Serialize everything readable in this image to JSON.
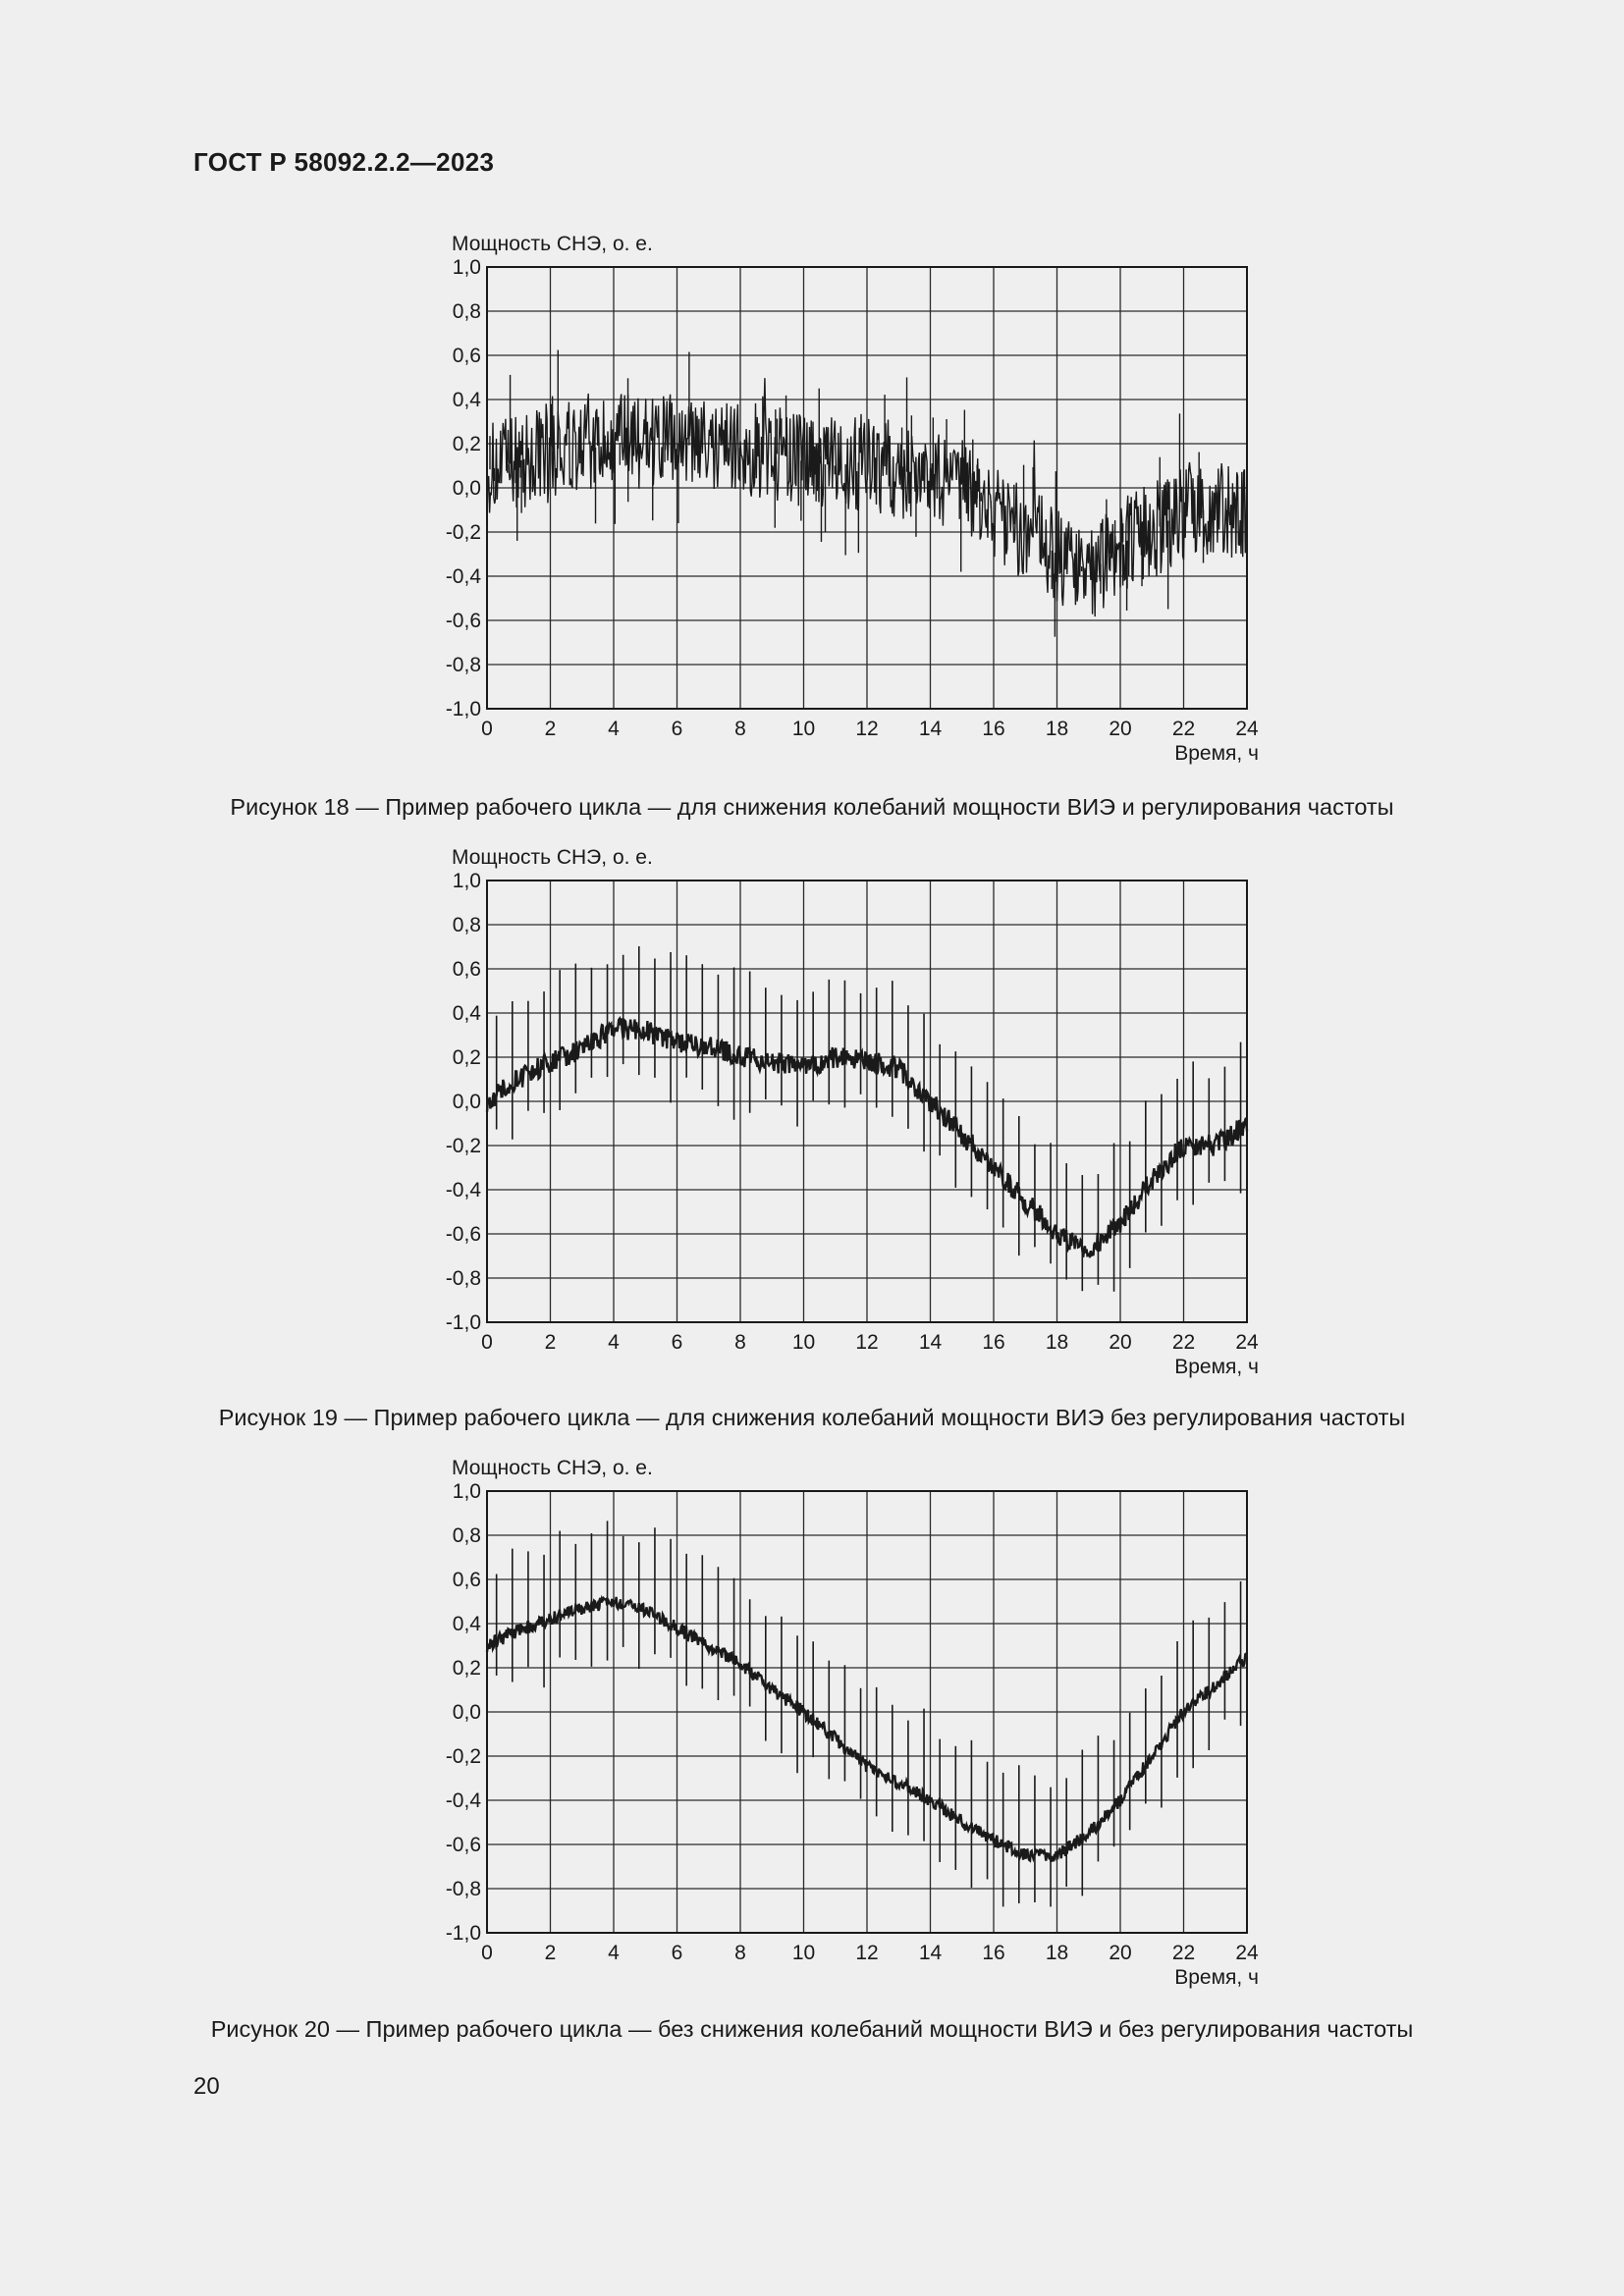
{
  "header": {
    "standard_id": "ГОСТ Р 58092.2.2—2023"
  },
  "page_number": "20",
  "figures": [
    {
      "caption": "Рисунок 18 — Пример рабочего цикла — для снижения колебаний мощности ВИЭ и регулирования частоты"
    },
    {
      "caption": "Рисунок 19 — Пример рабочего цикла — для снижения колебаний мощности ВИЭ без регулирования частоты"
    },
    {
      "caption": "Рисунок 20 — Пример рабочего цикла — без снижения колебаний мощности ВИЭ и без регулирования частоты"
    }
  ],
  "chart_data": [
    {
      "type": "line",
      "ylabel": "Мощность СНЭ, о. е.",
      "xlabel": "Время, ч",
      "xlim": [
        0,
        24
      ],
      "ylim": [
        -1.0,
        1.0
      ],
      "xticks": [
        "0",
        "2",
        "4",
        "6",
        "8",
        "10",
        "12",
        "14",
        "16",
        "18",
        "20",
        "22",
        "24"
      ],
      "yticks": [
        "1,0",
        "0,8",
        "0,6",
        "0,4",
        "0,2",
        "0,0",
        "-0,2",
        "-0,4",
        "-0,6",
        "-0,8",
        "-1,0"
      ],
      "grid": true,
      "series": [
        {
          "x": [
            0,
            1,
            2,
            3,
            4,
            5,
            6,
            7,
            8,
            9,
            10,
            11,
            12,
            13,
            14,
            15,
            16,
            17,
            18,
            19,
            20,
            21,
            22,
            23,
            24
          ],
          "y": [
            0.08,
            0.12,
            0.18,
            0.17,
            0.2,
            0.22,
            0.2,
            0.18,
            0.18,
            0.16,
            0.12,
            0.1,
            0.12,
            0.08,
            0.05,
            0.0,
            -0.1,
            -0.2,
            -0.3,
            -0.4,
            -0.25,
            -0.2,
            -0.1,
            -0.1,
            -0.1
          ]
        }
      ]
    },
    {
      "type": "line",
      "ylabel": "Мощность СНЭ, о. е.",
      "xlabel": "Время, ч",
      "xlim": [
        0,
        24
      ],
      "ylim": [
        -1.0,
        1.0
      ],
      "xticks": [
        "0",
        "2",
        "4",
        "6",
        "8",
        "10",
        "12",
        "14",
        "16",
        "18",
        "20",
        "22",
        "24"
      ],
      "yticks": [
        "1,0",
        "0,8",
        "0,6",
        "0,4",
        "0,2",
        "0,0",
        "-0,2",
        "-0,4",
        "-0,6",
        "-0,8",
        "-1,0"
      ],
      "grid": true,
      "series": [
        {
          "x": [
            0,
            1,
            2,
            3,
            4,
            5,
            6,
            7,
            8,
            9,
            10,
            11,
            12,
            13,
            14,
            15,
            16,
            17,
            18,
            19,
            20,
            21,
            22,
            23,
            24
          ],
          "y": [
            0.0,
            0.1,
            0.18,
            0.24,
            0.33,
            0.32,
            0.27,
            0.25,
            0.2,
            0.18,
            0.15,
            0.2,
            0.18,
            0.15,
            0.0,
            -0.15,
            -0.3,
            -0.45,
            -0.6,
            -0.68,
            -0.55,
            -0.35,
            -0.2,
            -0.2,
            -0.1
          ]
        }
      ]
    },
    {
      "type": "line",
      "ylabel": "Мощность СНЭ, о. е.",
      "xlabel": "Время, ч",
      "xlim": [
        0,
        24
      ],
      "ylim": [
        -1.0,
        1.0
      ],
      "xticks": [
        "0",
        "2",
        "4",
        "6",
        "8",
        "10",
        "12",
        "14",
        "16",
        "18",
        "20",
        "22",
        "24"
      ],
      "yticks": [
        "1,0",
        "0,8",
        "0,6",
        "0,4",
        "0,2",
        "0,0",
        "-0,2",
        "-0,4",
        "-0,6",
        "-0,8",
        "-1,0"
      ],
      "grid": true,
      "series": [
        {
          "x": [
            0,
            1,
            2,
            3,
            4,
            5,
            6,
            7,
            8,
            9,
            10,
            11,
            12,
            13,
            14,
            15,
            16,
            17,
            18,
            19,
            20,
            21,
            22,
            23,
            24
          ],
          "y": [
            0.3,
            0.37,
            0.42,
            0.47,
            0.5,
            0.46,
            0.38,
            0.3,
            0.22,
            0.1,
            0.0,
            -0.12,
            -0.25,
            -0.32,
            -0.4,
            -0.5,
            -0.58,
            -0.65,
            -0.65,
            -0.55,
            -0.4,
            -0.2,
            0.0,
            0.12,
            0.25
          ]
        }
      ]
    }
  ]
}
